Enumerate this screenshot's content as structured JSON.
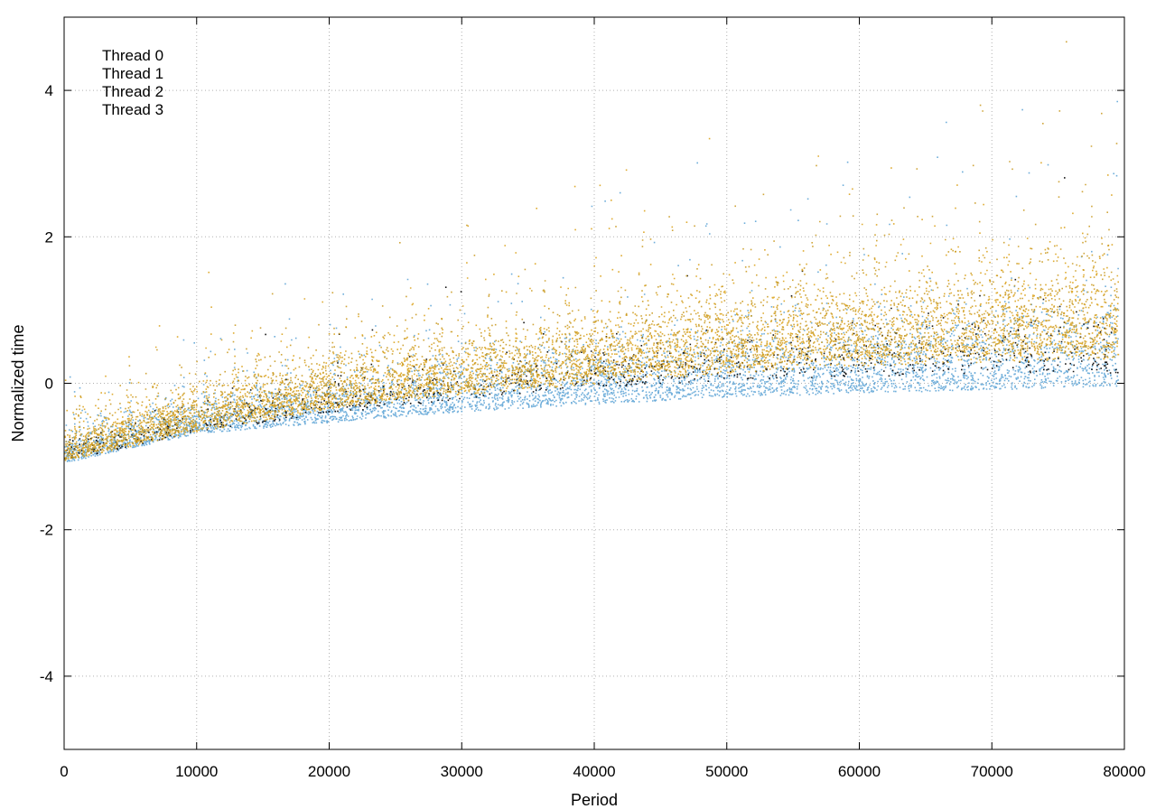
{
  "chart_data": {
    "type": "scatter",
    "title": "",
    "xlabel": "Period",
    "ylabel": "Normalized time",
    "xlim": [
      0,
      80000
    ],
    "ylim": [
      -5,
      5
    ],
    "x_ticks": [
      0,
      10000,
      20000,
      30000,
      40000,
      50000,
      60000,
      70000,
      80000
    ],
    "x_tick_labels": [
      "0",
      "10000",
      "20000",
      "30000",
      "40000",
      "50000",
      "60000",
      "70000",
      "80000"
    ],
    "y_ticks": [
      -4,
      -2,
      0,
      2,
      4
    ],
    "y_tick_labels": [
      "-4",
      "-2",
      "0",
      "2",
      "4"
    ],
    "grid": true,
    "legend_position": "top-left",
    "x_max_data": 79500,
    "series": [
      {
        "name": "Thread 0",
        "color": "#000000",
        "trend": [
          {
            "x": 0,
            "y": -1.0
          },
          {
            "x": 10000,
            "y": -0.6
          },
          {
            "x": 20000,
            "y": -0.35
          },
          {
            "x": 30000,
            "y": -0.15
          },
          {
            "x": 40000,
            "y": 0.0
          },
          {
            "x": 50000,
            "y": 0.1
          },
          {
            "x": 60000,
            "y": 0.15
          },
          {
            "x": 70000,
            "y": 0.2
          },
          {
            "x": 79500,
            "y": 0.2
          }
        ],
        "spread": 0.25
      },
      {
        "name": "Thread 1",
        "color": "#56a0d3",
        "trend": [
          {
            "x": 0,
            "y": -1.0
          },
          {
            "x": 10000,
            "y": -0.6
          },
          {
            "x": 20000,
            "y": -0.45
          },
          {
            "x": 30000,
            "y": -0.3
          },
          {
            "x": 40000,
            "y": -0.2
          },
          {
            "x": 50000,
            "y": -0.1
          },
          {
            "x": 60000,
            "y": -0.05
          },
          {
            "x": 70000,
            "y": 0.0
          },
          {
            "x": 79500,
            "y": 0.05
          }
        ],
        "spread": 0.35
      },
      {
        "name": "Thread 2",
        "color": "#d99d0f",
        "trend": [
          {
            "x": 0,
            "y": -0.95
          },
          {
            "x": 10000,
            "y": -0.55
          },
          {
            "x": 20000,
            "y": -0.25
          },
          {
            "x": 30000,
            "y": -0.05
          },
          {
            "x": 40000,
            "y": 0.1
          },
          {
            "x": 50000,
            "y": 0.25
          },
          {
            "x": 60000,
            "y": 0.35
          },
          {
            "x": 70000,
            "y": 0.4
          },
          {
            "x": 79500,
            "y": 0.45
          }
        ],
        "spread": 0.45
      },
      {
        "name": "Thread 3",
        "color": "#c8961a",
        "trend": [
          {
            "x": 0,
            "y": -0.95
          },
          {
            "x": 10000,
            "y": -0.5
          },
          {
            "x": 20000,
            "y": -0.2
          },
          {
            "x": 30000,
            "y": 0.0
          },
          {
            "x": 40000,
            "y": 0.2
          },
          {
            "x": 50000,
            "y": 0.35
          },
          {
            "x": 60000,
            "y": 0.45
          },
          {
            "x": 70000,
            "y": 0.5
          },
          {
            "x": 79500,
            "y": 0.55
          }
        ],
        "spread": 0.45
      }
    ]
  }
}
